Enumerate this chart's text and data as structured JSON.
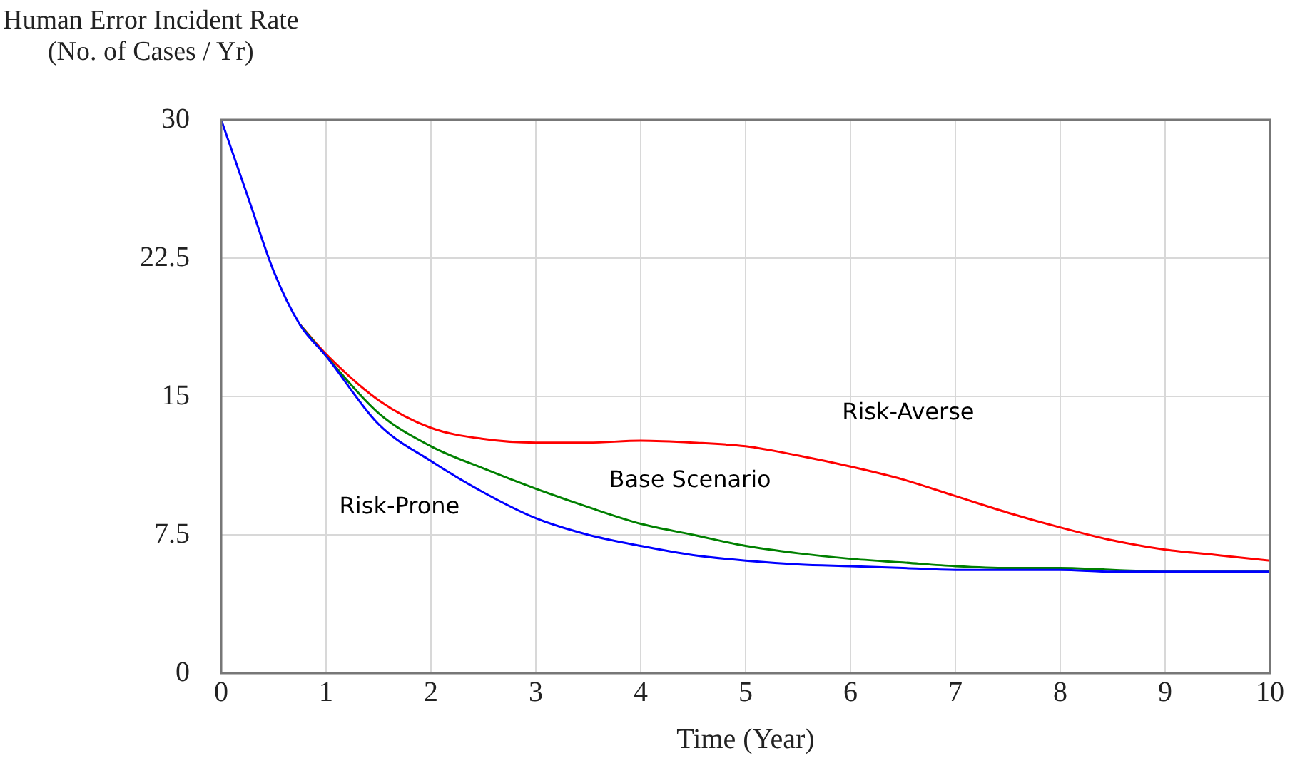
{
  "chart_data": {
    "type": "line",
    "ylabel": "Human Error Incident Rate\n(No. of Cases / Yr)",
    "xlabel": "Time (Year)",
    "x": [
      0,
      0.25,
      0.5,
      0.75,
      1,
      1.5,
      2,
      2.5,
      3,
      3.5,
      4,
      4.5,
      5,
      5.5,
      6,
      6.5,
      7,
      7.5,
      8,
      8.5,
      9,
      9.5,
      10
    ],
    "series": [
      {
        "color": "#ff0000",
        "values": [
          null,
          null,
          null,
          18.9,
          17.3,
          14.8,
          13.3,
          12.7,
          12.5,
          12.5,
          12.6,
          12.5,
          12.3,
          11.8,
          11.2,
          10.5,
          9.6,
          8.7,
          7.9,
          7.2,
          6.7,
          6.4,
          6.1
        ]
      },
      {
        "color": "#008000",
        "values": [
          null,
          null,
          null,
          18.9,
          17.2,
          14.1,
          12.3,
          11.1,
          10,
          9,
          8.1,
          7.5,
          6.9,
          6.5,
          6.2,
          6,
          5.8,
          5.7,
          5.7,
          5.6,
          5.5,
          5.5,
          5.5
        ]
      },
      {
        "color": "#0000ff",
        "values": [
          30,
          25.9,
          21.8,
          18.9,
          17.2,
          13.5,
          11.5,
          9.8,
          8.4,
          7.5,
          6.9,
          6.4,
          6.1,
          5.9,
          5.8,
          5.7,
          5.6,
          5.6,
          5.6,
          5.5,
          5.5,
          5.5,
          5.5
        ]
      }
    ],
    "xlim": [
      0,
      10
    ],
    "xticks": [
      0,
      1,
      2,
      3,
      4,
      5,
      6,
      7,
      8,
      9,
      10
    ],
    "ylim": [
      0,
      30
    ],
    "yticks": [
      0,
      7.5,
      15,
      22.5,
      30
    ],
    "grid": true,
    "legend": false,
    "marker": "none",
    "line_style": "solid",
    "annotations": [
      "Risk-Averse",
      "Base Scenario",
      "Risk-Prone"
    ]
  }
}
